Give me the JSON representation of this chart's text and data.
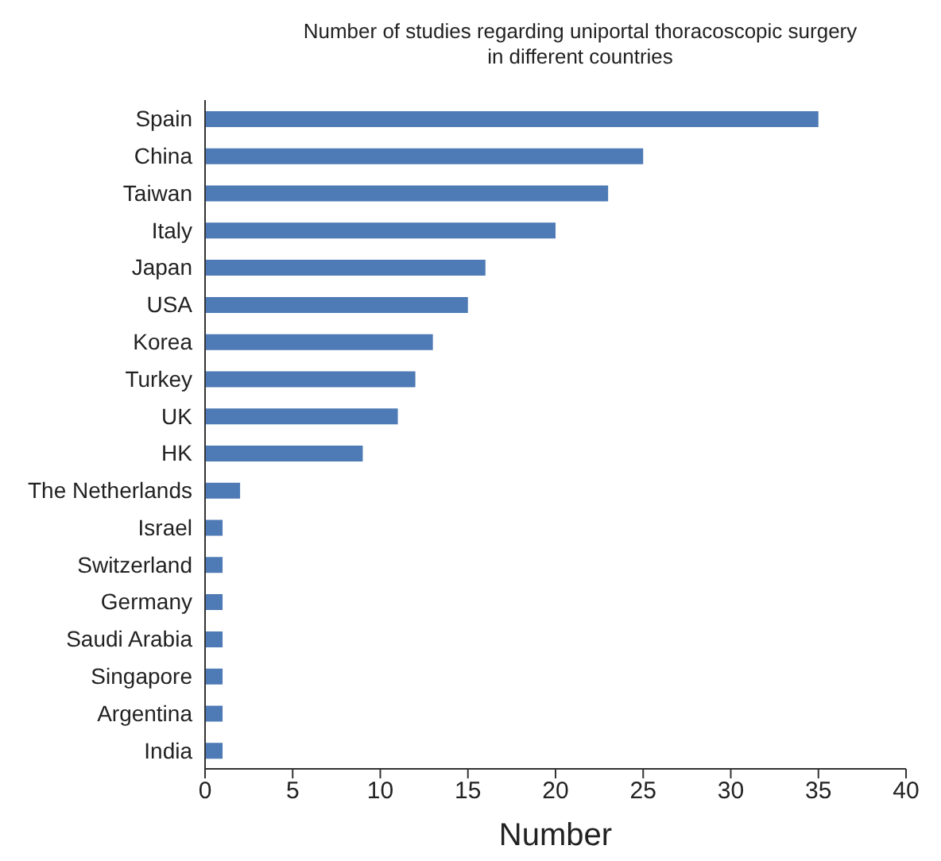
{
  "chart_data": {
    "type": "bar",
    "orientation": "horizontal",
    "title": "Number of studies regarding uniportal thoracoscopic surgery in different countries",
    "xlabel": "Number",
    "categories": [
      "Spain",
      "China",
      "Taiwan",
      "Italy",
      "Japan",
      "USA",
      "Korea",
      "Turkey",
      "UK",
      "HK",
      "The Netherlands",
      "Israel",
      "Switzerland",
      "Germany",
      "Saudi Arabia",
      "Singapore",
      "Argentina",
      "India"
    ],
    "values": [
      35,
      25,
      23,
      20,
      16,
      15,
      13,
      12,
      11,
      9,
      2,
      1,
      1,
      1,
      1,
      1,
      1,
      1
    ],
    "color": "#4e7ab5",
    "xlim": [
      0,
      40
    ],
    "xticks": [
      0,
      5,
      10,
      15,
      20,
      25,
      30,
      35,
      40
    ],
    "grid": false,
    "legend": false
  }
}
